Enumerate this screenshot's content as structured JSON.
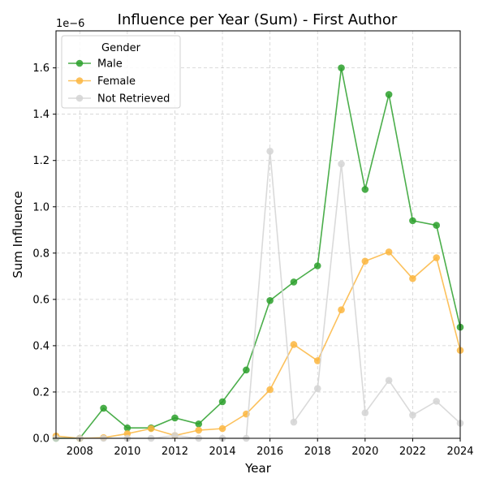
{
  "chart_data": {
    "type": "line",
    "title": "Influence per Year (Sum) - First Author",
    "xlabel": "Year",
    "ylabel": "Sum Influence",
    "y_multiplier_label": "1e−6",
    "xlim": [
      2007,
      2024
    ],
    "ylim": [
      0,
      1.76
    ],
    "x_ticks": [
      2008,
      2010,
      2012,
      2014,
      2016,
      2018,
      2020,
      2022,
      2024
    ],
    "y_ticks": [
      0.0,
      0.2,
      0.4,
      0.6,
      0.8,
      1.0,
      1.2,
      1.4,
      1.6
    ],
    "y_tick_labels": [
      "0.0",
      "0.2",
      "0.4",
      "0.6",
      "0.8",
      "1.0",
      "1.2",
      "1.4",
      "1.6"
    ],
    "grid": true,
    "legend_title": "Gender",
    "legend_position": "top-left",
    "x": [
      2007,
      2008,
      2009,
      2010,
      2011,
      2012,
      2013,
      2014,
      2015,
      2016,
      2017,
      2018,
      2019,
      2020,
      2021,
      2022,
      2023,
      2024
    ],
    "series": [
      {
        "name": "Male",
        "color": "#2ca02c",
        "values": [
          0.0,
          0.0,
          0.13,
          0.045,
          0.045,
          0.088,
          0.062,
          0.158,
          0.295,
          0.595,
          0.675,
          0.745,
          1.6,
          1.075,
          1.485,
          0.94,
          0.92,
          0.48
        ]
      },
      {
        "name": "Female",
        "color": "#fbb63f",
        "values": [
          0.01,
          0.0,
          0.003,
          0.02,
          0.042,
          0.012,
          0.035,
          0.042,
          0.105,
          0.21,
          0.405,
          0.335,
          0.555,
          0.765,
          0.805,
          0.69,
          0.78,
          0.38
        ]
      },
      {
        "name": "Not Retrieved",
        "color": "#d3d3d3",
        "values": [
          0.0,
          0.0,
          0.0,
          0.0,
          0.0,
          0.012,
          0.0,
          0.0,
          0.0,
          1.24,
          0.07,
          0.215,
          1.185,
          0.11,
          0.25,
          0.1,
          0.16,
          0.065
        ]
      }
    ]
  }
}
